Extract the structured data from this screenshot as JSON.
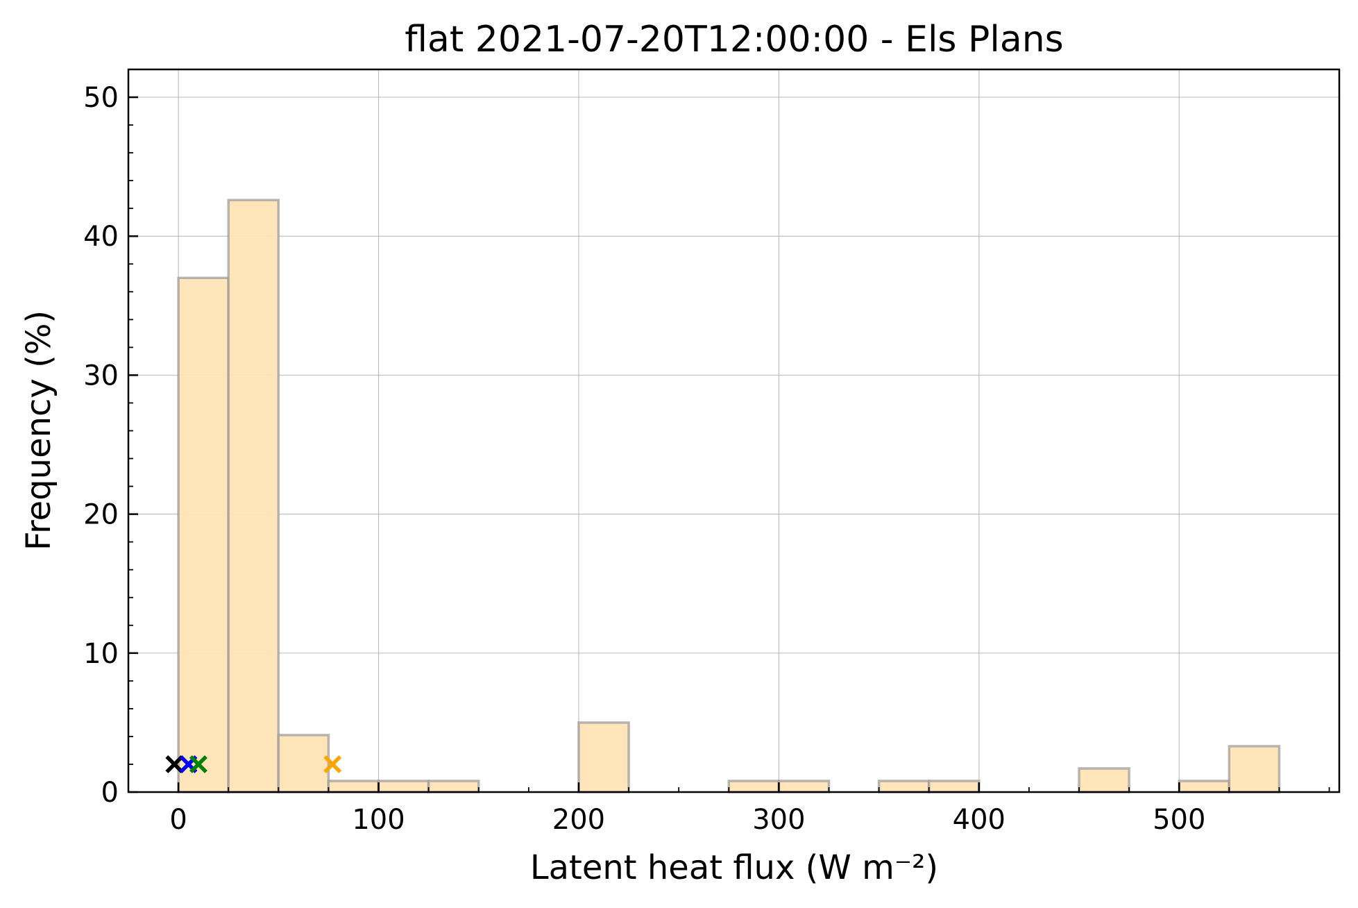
{
  "chart_data": {
    "type": "bar",
    "title": "flat 2021-07-20T12:00:00 - Els Plans",
    "xlabel": "Latent heat flux (W m⁻²)",
    "ylabel": "Frequency (%)",
    "xlim": [
      -25,
      580
    ],
    "ylim": [
      0,
      52
    ],
    "xticks": [
      0,
      100,
      200,
      300,
      400,
      500
    ],
    "yticks": [
      0,
      10,
      20,
      30,
      40,
      50
    ],
    "x_minor_step": 25,
    "y_minor_step": 2,
    "grid": true,
    "bar_color": "#ffe4b5",
    "bar_edge_color": "#999999",
    "bins": [
      {
        "x0": 0,
        "x1": 25,
        "value": 37.0
      },
      {
        "x0": 25,
        "x1": 50,
        "value": 42.6
      },
      {
        "x0": 50,
        "x1": 75,
        "value": 4.1
      },
      {
        "x0": 75,
        "x1": 100,
        "value": 0.8
      },
      {
        "x0": 100,
        "x1": 125,
        "value": 0.8
      },
      {
        "x0": 125,
        "x1": 150,
        "value": 0.8
      },
      {
        "x0": 200,
        "x1": 225,
        "value": 5.0
      },
      {
        "x0": 275,
        "x1": 300,
        "value": 0.8
      },
      {
        "x0": 300,
        "x1": 325,
        "value": 0.8
      },
      {
        "x0": 350,
        "x1": 375,
        "value": 0.8
      },
      {
        "x0": 375,
        "x1": 400,
        "value": 0.8
      },
      {
        "x0": 450,
        "x1": 475,
        "value": 1.7
      },
      {
        "x0": 500,
        "x1": 525,
        "value": 0.8
      },
      {
        "x0": 525,
        "x1": 550,
        "value": 3.3
      }
    ],
    "markers": [
      {
        "x": -2,
        "y": 2,
        "color": "#000000"
      },
      {
        "x": 5,
        "y": 2,
        "color": "#0000ff"
      },
      {
        "x": 10,
        "y": 2,
        "color": "#008000"
      },
      {
        "x": 77,
        "y": 2,
        "color": "#ffa500"
      }
    ]
  }
}
